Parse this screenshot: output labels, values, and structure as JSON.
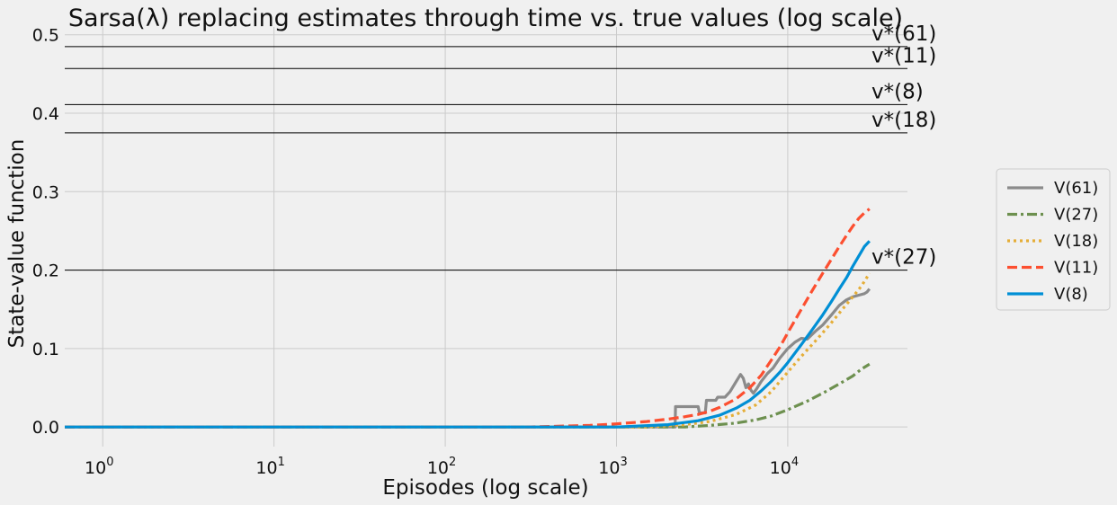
{
  "chart_data": {
    "type": "line",
    "title": "Sarsa(λ) replacing estimates through time vs. true values (log scale)",
    "xlabel": "Episodes (log scale)",
    "ylabel": "State-value function",
    "xscale": "log",
    "xlim": [
      0.6,
      50000
    ],
    "ylim": [
      -0.025,
      0.51
    ],
    "grid": true,
    "legend_position": "right-outside",
    "x_ticks": [
      {
        "value": 1,
        "base": "10",
        "exp": "0"
      },
      {
        "value": 10,
        "base": "10",
        "exp": "1"
      },
      {
        "value": 100,
        "base": "10",
        "exp": "2"
      },
      {
        "value": 1000,
        "base": "10",
        "exp": "3"
      },
      {
        "value": 10000,
        "base": "10",
        "exp": "4"
      }
    ],
    "y_ticks": [
      {
        "value": 0.0,
        "label": "0.0"
      },
      {
        "value": 0.1,
        "label": "0.1"
      },
      {
        "value": 0.2,
        "label": "0.2"
      },
      {
        "value": 0.3,
        "label": "0.3"
      },
      {
        "value": 0.4,
        "label": "0.4"
      },
      {
        "value": 0.5,
        "label": "0.5"
      }
    ],
    "reference_lines": [
      {
        "label": "v*(61)",
        "value": 0.485
      },
      {
        "label": "v*(11)",
        "value": 0.457
      },
      {
        "label": "v*(8)",
        "value": 0.411
      },
      {
        "label": "v*(18)",
        "value": 0.375
      },
      {
        "label": "v*(27)",
        "value": 0.2
      }
    ],
    "series": [
      {
        "name": "V(61)",
        "color": "#8b8b8b",
        "style": "solid",
        "x": [
          0.6,
          2200,
          2210,
          3000,
          3050,
          3300,
          3350,
          3800,
          3900,
          4300,
          4600,
          5000,
          5300,
          5500,
          5700,
          5900,
          6100,
          6300,
          6600,
          7000,
          7600,
          8200,
          9000,
          10000,
          11000,
          12000,
          13000,
          14500,
          16000,
          18000,
          20000,
          22000,
          24000,
          26000,
          28000,
          29000,
          30000
        ],
        "y": [
          0.0,
          0.0,
          0.026,
          0.026,
          0.018,
          0.018,
          0.034,
          0.034,
          0.038,
          0.038,
          0.045,
          0.058,
          0.067,
          0.062,
          0.05,
          0.055,
          0.047,
          0.043,
          0.049,
          0.058,
          0.068,
          0.075,
          0.088,
          0.1,
          0.108,
          0.113,
          0.112,
          0.122,
          0.13,
          0.143,
          0.155,
          0.162,
          0.166,
          0.168,
          0.17,
          0.172,
          0.176
        ]
      },
      {
        "name": "V(27)",
        "color": "#6d904f",
        "style": "dashdot",
        "x": [
          0.6,
          2500,
          3500,
          5000,
          6500,
          8000,
          10000,
          13000,
          16000,
          20000,
          24000,
          27000,
          30000
        ],
        "y": [
          0.0,
          0.0,
          0.002,
          0.005,
          0.009,
          0.014,
          0.022,
          0.033,
          0.043,
          0.055,
          0.065,
          0.074,
          0.08
        ]
      },
      {
        "name": "V(18)",
        "color": "#e5ae38",
        "style": "dotted",
        "x": [
          0.6,
          1500,
          2500,
          3500,
          5000,
          6500,
          8000,
          10000,
          12000,
          15000,
          18000,
          21000,
          24000,
          27000,
          30000
        ],
        "y": [
          0.0,
          0.0,
          0.003,
          0.007,
          0.016,
          0.028,
          0.045,
          0.07,
          0.09,
          0.113,
          0.133,
          0.151,
          0.166,
          0.18,
          0.196
        ]
      },
      {
        "name": "V(11)",
        "color": "#fc4f30",
        "style": "dashed",
        "x": [
          0.6,
          300,
          700,
          1000,
          1500,
          2000,
          2500,
          3000,
          3500,
          4000,
          5000,
          6000,
          7000,
          8000,
          9000,
          10000,
          12000,
          14000,
          16000,
          18000,
          20000,
          22000,
          24000,
          26000,
          28000,
          30000
        ],
        "y": [
          0.0,
          0.0,
          0.002,
          0.004,
          0.007,
          0.01,
          0.013,
          0.016,
          0.02,
          0.025,
          0.036,
          0.05,
          0.066,
          0.085,
          0.102,
          0.12,
          0.15,
          0.175,
          0.196,
          0.214,
          0.23,
          0.244,
          0.256,
          0.266,
          0.273,
          0.278
        ]
      },
      {
        "name": "V(8)",
        "color": "#008fd5",
        "style": "solid",
        "x": [
          0.6,
          1000,
          2000,
          3000,
          4000,
          5000,
          6000,
          7000,
          8000,
          9000,
          10000,
          12000,
          14000,
          16000,
          18000,
          20000,
          22000,
          24000,
          26000,
          28000,
          30000
        ],
        "y": [
          0.0,
          0.0,
          0.003,
          0.008,
          0.015,
          0.024,
          0.034,
          0.046,
          0.058,
          0.07,
          0.082,
          0.105,
          0.125,
          0.143,
          0.16,
          0.176,
          0.19,
          0.205,
          0.218,
          0.23,
          0.237
        ]
      }
    ]
  }
}
